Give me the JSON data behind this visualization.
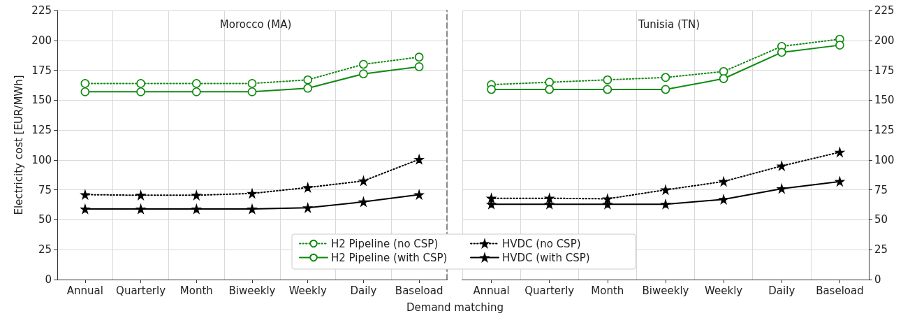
{
  "chart_data": [
    {
      "type": "line",
      "title": "Morocco (MA)",
      "xlabel": "Demand matching",
      "ylabel": "Electricity cost [EUR/MWh]",
      "categories": [
        "Annual",
        "Quarterly",
        "Month",
        "Biweekly",
        "Weekly",
        "Daily",
        "Baseload"
      ],
      "series": [
        {
          "name": "H2 Pipeline (no CSP)",
          "color": "#108a10",
          "marker": "circle",
          "line_style": "dotted",
          "values": [
            164,
            164,
            164,
            164,
            167,
            180,
            186
          ]
        },
        {
          "name": "H2 Pipeline (with CSP)",
          "color": "#108a10",
          "marker": "circle",
          "line_style": "solid",
          "values": [
            157,
            157,
            157,
            157,
            160,
            172,
            178
          ]
        },
        {
          "name": "HVDC (no CSP)",
          "color": "#000000",
          "marker": "star",
          "line_style": "dotted",
          "values": [
            71,
            70.5,
            70.5,
            72,
            77,
            82.5,
            100.5
          ]
        },
        {
          "name": "HVDC (with CSP)",
          "color": "#000000",
          "marker": "star",
          "line_style": "solid",
          "values": [
            59,
            59,
            59,
            59,
            60,
            65,
            71
          ]
        }
      ],
      "ylim": [
        0,
        225
      ],
      "yticks": [
        0,
        25,
        50,
        75,
        100,
        125,
        150,
        175,
        200,
        225
      ],
      "grid": true,
      "legend": "bottom"
    },
    {
      "type": "line",
      "title": "Tunisia (TN)",
      "categories": [
        "Annual",
        "Quarterly",
        "Month",
        "Biweekly",
        "Weekly",
        "Daily",
        "Baseload"
      ],
      "series": [
        {
          "color": "#108a10",
          "marker": "circle",
          "line_style": "dotted",
          "values": [
            163,
            165,
            167,
            169,
            174,
            195,
            201
          ]
        },
        {
          "color": "#108a10",
          "marker": "circle",
          "line_style": "solid",
          "values": [
            159,
            159,
            159,
            159,
            168,
            190,
            196
          ]
        },
        {
          "color": "#000000",
          "marker": "star",
          "line_style": "dotted",
          "values": [
            68,
            68,
            67.5,
            75,
            82,
            95,
            106.5
          ]
        },
        {
          "color": "#000000",
          "marker": "star",
          "line_style": "solid",
          "values": [
            63,
            63,
            63,
            63,
            67,
            76,
            82
          ]
        }
      ],
      "ylim": [
        0,
        225
      ],
      "yticks": [
        0,
        25,
        50,
        75,
        100,
        125,
        150,
        175,
        200,
        225
      ],
      "grid": true,
      "legend": false
    }
  ]
}
